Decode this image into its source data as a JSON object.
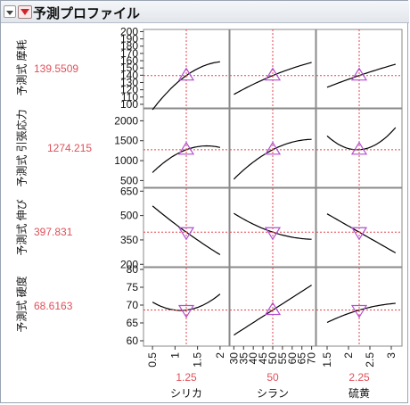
{
  "window": {
    "title": "予測プロファイル"
  },
  "rows": [
    {
      "label": "予測式 摩耗",
      "value": "139.5509",
      "ticks": [
        "200",
        "190",
        "180",
        "170",
        "160",
        "150",
        "140",
        "130",
        "120",
        "110",
        "100"
      ]
    },
    {
      "label": "予測式 引張応力",
      "value": "1274.215",
      "ticks": [
        "2000",
        "1500",
        "1000",
        "500"
      ]
    },
    {
      "label": "予測式 伸び",
      "value": "397.831",
      "ticks": [
        "650",
        "500",
        "350",
        "200"
      ]
    },
    {
      "label": "予測式 硬度",
      "value": "68.6163",
      "ticks": [
        "80",
        "75",
        "70",
        "65",
        "60"
      ]
    }
  ],
  "columns": [
    {
      "factor": "シリカ",
      "value": "1.25",
      "ticks": [
        "0.5",
        "1",
        "1.5",
        "2"
      ]
    },
    {
      "factor": "シラン",
      "value": "50",
      "ticks": [
        "30",
        "35",
        "40",
        "45",
        "50",
        "55",
        "60",
        "65",
        "70"
      ]
    },
    {
      "factor": "硫黄",
      "value": "2.25",
      "ticks": [
        "1.5",
        "2",
        "2.5",
        "3"
      ]
    }
  ],
  "colors": {
    "curve": "#000000",
    "crosshair": "#e8414e",
    "marker": "#b34fd1",
    "value_text": "#e0505a"
  },
  "icons": {
    "disclosure": "triangle-down-icon",
    "hotspot": "red-triangle-menu-icon"
  }
}
